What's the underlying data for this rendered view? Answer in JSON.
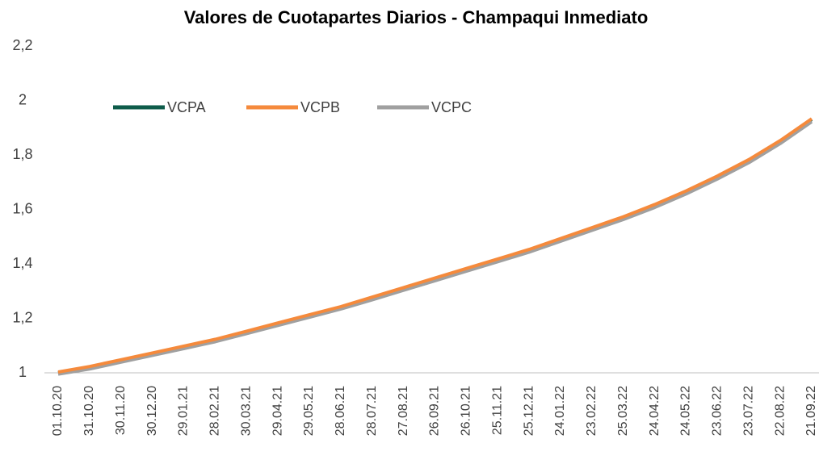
{
  "chart_data": {
    "type": "line",
    "title": "Valores de Cuotapartes Diarios - Champaqui Inmediato",
    "categories": [
      "01.10.20",
      "31.10.20",
      "30.11.20",
      "30.12.20",
      "29.01.21",
      "28.02.21",
      "30.03.21",
      "29.04.21",
      "29.05.21",
      "28.06.21",
      "28.07.21",
      "27.08.21",
      "26.09.21",
      "26.10.21",
      "25.11.21",
      "25.12.21",
      "24.01.22",
      "23.02.22",
      "25.03.22",
      "24.04.22",
      "24.05.22",
      "23.06.22",
      "23.07.22",
      "22.08.22",
      "21.09.22"
    ],
    "series": [
      {
        "name": "VCPA",
        "color": "#0e5c4a",
        "values": [
          1.0,
          1.02,
          1.045,
          1.07,
          1.095,
          1.12,
          1.15,
          1.18,
          1.21,
          1.24,
          1.275,
          1.31,
          1.345,
          1.38,
          1.415,
          1.45,
          1.49,
          1.53,
          1.57,
          1.615,
          1.665,
          1.72,
          1.78,
          1.85,
          1.93
        ]
      },
      {
        "name": "VCPB",
        "color": "#f58a3c",
        "values": [
          1.003,
          1.023,
          1.048,
          1.073,
          1.098,
          1.123,
          1.153,
          1.183,
          1.213,
          1.243,
          1.278,
          1.313,
          1.348,
          1.383,
          1.418,
          1.453,
          1.493,
          1.533,
          1.573,
          1.618,
          1.668,
          1.723,
          1.783,
          1.853,
          1.933
        ]
      },
      {
        "name": "VCPC",
        "color": "#a0a0a0",
        "values": [
          0.995,
          1.014,
          1.039,
          1.064,
          1.089,
          1.114,
          1.144,
          1.174,
          1.204,
          1.234,
          1.268,
          1.303,
          1.338,
          1.373,
          1.408,
          1.443,
          1.483,
          1.523,
          1.563,
          1.607,
          1.657,
          1.712,
          1.772,
          1.842,
          1.922
        ]
      }
    ],
    "ylim": [
      1,
      2.2
    ],
    "yticks": [
      1,
      {
        "value": 1.2,
        "label": "1,2"
      },
      {
        "value": 1.4,
        "label": "1,4"
      },
      {
        "value": 1.6,
        "label": "1,6"
      },
      {
        "value": 1.8,
        "label": "1,8"
      },
      2,
      {
        "value": 2.2,
        "label": "2,2"
      }
    ],
    "grid": false,
    "legend": "top-left"
  }
}
